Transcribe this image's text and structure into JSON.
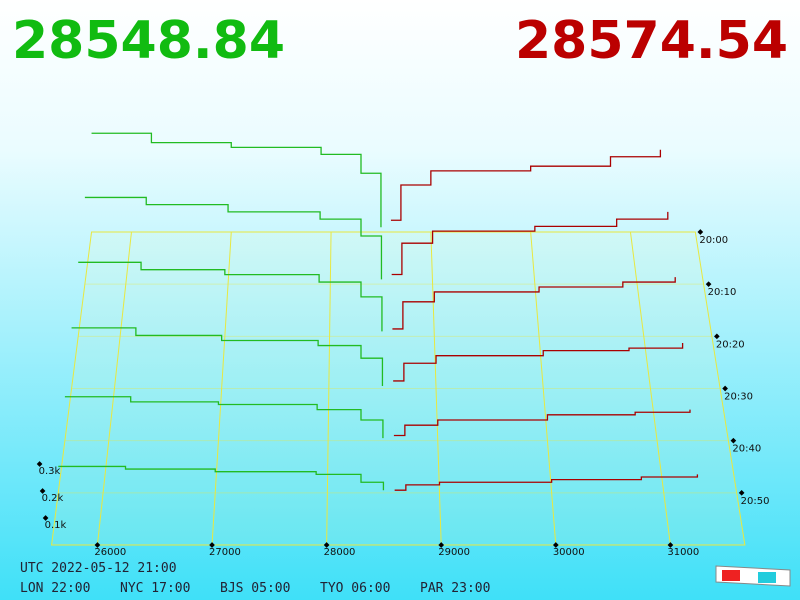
{
  "chart_data": {
    "type": "depth3d",
    "bid_price": 28548.84,
    "ask_price": 28574.54,
    "bid_color": "#22bb22",
    "ask_color": "#aa0000",
    "price_colors": [
      "#11bb11",
      "#bb0000"
    ],
    "xlim": [
      25600,
      31650
    ],
    "xticks": [
      26000,
      27000,
      28000,
      29000,
      30000,
      31000
    ],
    "times": [
      "20:00",
      "20:10",
      "20:20",
      "20:30",
      "20:40",
      "20:50"
    ],
    "vticks": [
      {
        "value": 0.1,
        "label": "0.1k"
      },
      {
        "value": 0.2,
        "label": "0.2k"
      },
      {
        "value": 0.3,
        "label": "0.3k"
      }
    ],
    "bid_prices": [
      25600,
      26200,
      27000,
      27900,
      28300,
      28500
    ],
    "ask_prices": [
      28600,
      28700,
      29000,
      30000,
      30800,
      31300
    ],
    "rows": [
      {
        "bid": [
          0.42,
          0.38,
          0.36,
          0.33,
          0.25,
          0.02
        ],
        "ask": [
          0.05,
          0.2,
          0.26,
          0.28,
          0.32,
          0.35
        ]
      },
      {
        "bid": [
          0.36,
          0.33,
          0.3,
          0.27,
          0.2,
          0.02
        ],
        "ask": [
          0.04,
          0.17,
          0.22,
          0.24,
          0.27,
          0.3
        ]
      },
      {
        "bid": [
          0.3,
          0.27,
          0.25,
          0.22,
          0.16,
          0.02
        ],
        "ask": [
          0.03,
          0.14,
          0.18,
          0.2,
          0.22,
          0.24
        ]
      },
      {
        "bid": [
          0.24,
          0.21,
          0.19,
          0.17,
          0.12,
          0.01
        ],
        "ask": [
          0.03,
          0.1,
          0.13,
          0.15,
          0.16,
          0.18
        ]
      },
      {
        "bid": [
          0.17,
          0.15,
          0.14,
          0.12,
          0.08,
          0.01
        ],
        "ask": [
          0.02,
          0.06,
          0.08,
          0.1,
          0.11,
          0.12
        ]
      },
      {
        "bid": [
          0.1,
          0.09,
          0.08,
          0.07,
          0.04,
          0.01
        ],
        "ask": [
          0.01,
          0.03,
          0.04,
          0.05,
          0.06,
          0.07
        ]
      }
    ]
  },
  "footer": {
    "utc": "UTC 2022-05-12 21:00",
    "zones": [
      "LON 22:00",
      "NYC 17:00",
      "BJS 05:00",
      "TYO 06:00",
      "PAR 23:00"
    ]
  }
}
